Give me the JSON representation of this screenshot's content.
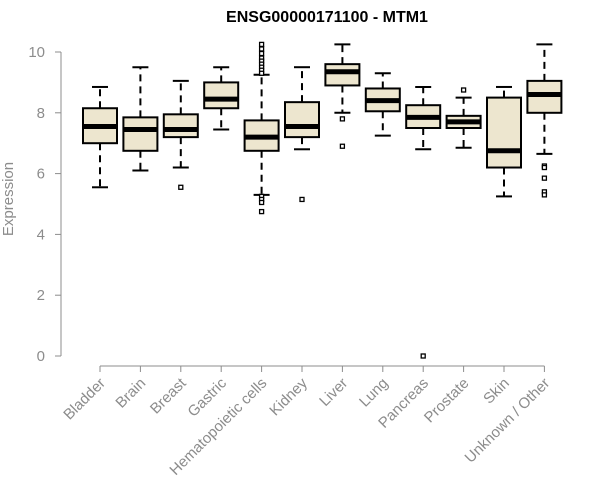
{
  "chart_data": {
    "type": "boxplot",
    "title": "ENSG00000171100 - MTM1",
    "ylabel": "Expression",
    "xlabel": "",
    "ylim": [
      0,
      10
    ],
    "yticks": [
      0,
      2,
      4,
      6,
      8,
      10
    ],
    "ytick_labels": [
      "0",
      "2",
      "4",
      "6",
      "8",
      "10"
    ],
    "box_fill": "#ede6cf",
    "box_stroke": "#000000",
    "axis_color": "#8c8c8c",
    "categories": [
      "Bladder",
      "Brain",
      "Breast",
      "Gastric",
      "Hematopoietic cells",
      "Kidney",
      "Liver",
      "Lung",
      "Pancreas",
      "Prostate",
      "Skin",
      "Unknown / Other"
    ],
    "boxes": [
      {
        "category": "Bladder",
        "whisker_low": 5.55,
        "q1": 7.0,
        "median": 7.55,
        "q3": 8.15,
        "whisker_high": 8.85,
        "outliers": []
      },
      {
        "category": "Brain",
        "whisker_low": 6.1,
        "q1": 6.75,
        "median": 7.45,
        "q3": 7.85,
        "whisker_high": 9.5,
        "outliers": []
      },
      {
        "category": "Breast",
        "whisker_low": 6.2,
        "q1": 7.2,
        "median": 7.45,
        "q3": 7.95,
        "whisker_high": 9.05,
        "outliers": [
          5.55
        ]
      },
      {
        "category": "Gastric",
        "whisker_low": 7.45,
        "q1": 8.15,
        "median": 8.45,
        "q3": 9.0,
        "whisker_high": 9.5,
        "outliers": []
      },
      {
        "category": "Hematopoietic cells",
        "whisker_low": 5.3,
        "q1": 6.75,
        "median": 7.2,
        "q3": 7.75,
        "whisker_high": 9.25,
        "outliers": [
          10.25,
          10.1,
          9.95,
          9.8,
          9.7,
          9.6,
          9.5,
          9.4,
          9.3,
          5.25,
          5.15,
          5.05,
          4.75
        ]
      },
      {
        "category": "Kidney",
        "whisker_low": 6.8,
        "q1": 7.2,
        "median": 7.55,
        "q3": 8.35,
        "whisker_high": 9.5,
        "outliers": [
          5.15
        ]
      },
      {
        "category": "Liver",
        "whisker_low": 8.0,
        "q1": 8.9,
        "median": 9.35,
        "q3": 9.6,
        "whisker_high": 10.25,
        "outliers": [
          7.8,
          6.9
        ]
      },
      {
        "category": "Lung",
        "whisker_low": 7.25,
        "q1": 8.05,
        "median": 8.4,
        "q3": 8.8,
        "whisker_high": 9.3,
        "outliers": []
      },
      {
        "category": "Pancreas",
        "whisker_low": 6.8,
        "q1": 7.5,
        "median": 7.85,
        "q3": 8.25,
        "whisker_high": 8.85,
        "outliers": [
          0.0
        ]
      },
      {
        "category": "Prostate",
        "whisker_low": 6.85,
        "q1": 7.5,
        "median": 7.7,
        "q3": 7.9,
        "whisker_high": 8.5,
        "outliers": [
          8.75
        ]
      },
      {
        "category": "Skin",
        "whisker_low": 5.25,
        "q1": 6.2,
        "median": 6.75,
        "q3": 8.5,
        "whisker_high": 8.85,
        "outliers": []
      },
      {
        "category": "Unknown / Other",
        "whisker_low": 6.65,
        "q1": 8.0,
        "median": 8.6,
        "q3": 9.05,
        "whisker_high": 10.25,
        "outliers": [
          6.25,
          6.2,
          5.85,
          5.4,
          5.3
        ]
      }
    ]
  }
}
